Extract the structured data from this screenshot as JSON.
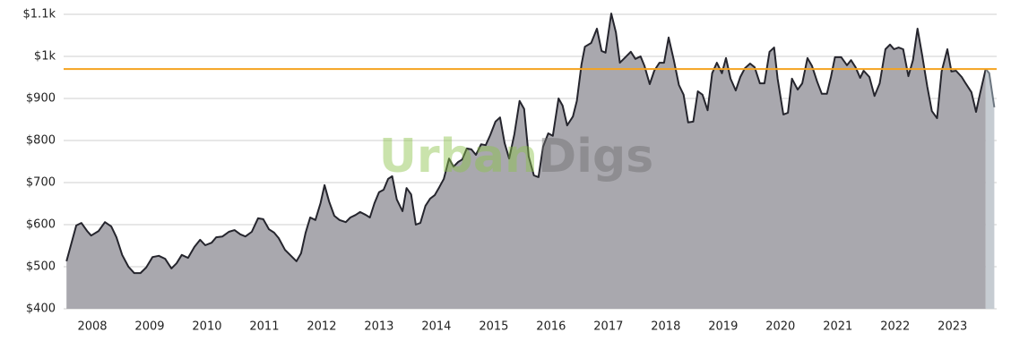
{
  "chart_data": {
    "type": "area",
    "watermark": [
      "Urban",
      "Digs"
    ],
    "xlim": [
      2008,
      2024.27
    ],
    "ylim": [
      400,
      1100
    ],
    "yticks": [
      {
        "value": 400,
        "label": "$400"
      },
      {
        "value": 500,
        "label": "$500"
      },
      {
        "value": 600,
        "label": "$600"
      },
      {
        "value": 700,
        "label": "$700"
      },
      {
        "value": 800,
        "label": "$800"
      },
      {
        "value": 900,
        "label": "$900"
      },
      {
        "value": 1000,
        "label": "$1k"
      },
      {
        "value": 1100,
        "label": "$1.1k"
      }
    ],
    "xticks": [
      {
        "value": 2008.5,
        "label": "2008"
      },
      {
        "value": 2009.5,
        "label": "2009"
      },
      {
        "value": 2010.5,
        "label": "2010"
      },
      {
        "value": 2011.5,
        "label": "2011"
      },
      {
        "value": 2012.5,
        "label": "2012"
      },
      {
        "value": 2013.5,
        "label": "2013"
      },
      {
        "value": 2014.5,
        "label": "2014"
      },
      {
        "value": 2015.5,
        "label": "2015"
      },
      {
        "value": 2016.5,
        "label": "2016"
      },
      {
        "value": 2017.5,
        "label": "2017"
      },
      {
        "value": 2018.5,
        "label": "2018"
      },
      {
        "value": 2019.5,
        "label": "2019"
      },
      {
        "value": 2020.5,
        "label": "2020"
      },
      {
        "value": 2021.5,
        "label": "2021"
      },
      {
        "value": 2022.5,
        "label": "2022"
      },
      {
        "value": 2023.5,
        "label": "2023"
      }
    ],
    "grid": true,
    "reference_line": {
      "value": 970,
      "color": "#f5a31f"
    },
    "series": [
      {
        "color": "#a9a8ae",
        "line_color": "#25252d",
        "x": [
          2008.05,
          2008.22,
          2008.31,
          2008.41,
          2008.48,
          2008.61,
          2008.72,
          2008.83,
          2008.92,
          2009.02,
          2009.13,
          2009.23,
          2009.34,
          2009.44,
          2009.55,
          2009.66,
          2009.77,
          2009.88,
          2009.97,
          2010.06,
          2010.17,
          2010.28,
          2010.38,
          2010.47,
          2010.58,
          2010.66,
          2010.77,
          2010.88,
          2010.98,
          2011.08,
          2011.17,
          2011.28,
          2011.39,
          2011.48,
          2011.58,
          2011.67,
          2011.75,
          2011.86,
          2012.06,
          2012.14,
          2012.22,
          2012.3,
          2012.39,
          2012.48,
          2012.55,
          2012.63,
          2012.72,
          2012.81,
          2012.92,
          2013.0,
          2013.09,
          2013.17,
          2013.27,
          2013.34,
          2013.42,
          2013.5,
          2013.58,
          2013.66,
          2013.73,
          2013.81,
          2013.91,
          2013.98,
          2014.06,
          2014.14,
          2014.22,
          2014.31,
          2014.39,
          2014.47,
          2014.55,
          2014.63,
          2014.72,
          2014.8,
          2014.88,
          2014.95,
          2015.03,
          2015.11,
          2015.19,
          2015.28,
          2015.36,
          2015.44,
          2015.53,
          2015.61,
          2015.69,
          2015.77,
          2015.86,
          2015.95,
          2016.03,
          2016.11,
          2016.2,
          2016.28,
          2016.36,
          2016.45,
          2016.53,
          2016.63,
          2016.7,
          2016.78,
          2016.88,
          2016.95,
          2017.03,
          2017.09,
          2017.2,
          2017.3,
          2017.38,
          2017.45,
          2017.55,
          2017.63,
          2017.7,
          2017.78,
          2017.89,
          2017.97,
          2018.06,
          2018.13,
          2018.22,
          2018.3,
          2018.39,
          2018.47,
          2018.55,
          2018.64,
          2018.73,
          2018.81,
          2018.89,
          2018.98,
          2019.06,
          2019.14,
          2019.23,
          2019.31,
          2019.39,
          2019.48,
          2019.55,
          2019.63,
          2019.72,
          2019.8,
          2019.88,
          2019.97,
          2020.05,
          2020.14,
          2020.22,
          2020.31,
          2020.39,
          2020.45,
          2020.55,
          2020.63,
          2020.7,
          2020.8,
          2020.88,
          2020.97,
          2021.05,
          2021.14,
          2021.22,
          2021.31,
          2021.38,
          2021.45,
          2021.56,
          2021.66,
          2021.73,
          2021.81,
          2021.89,
          2021.95,
          2022.05,
          2022.14,
          2022.23,
          2022.33,
          2022.41,
          2022.48,
          2022.56,
          2022.64,
          2022.73,
          2022.81,
          2022.89,
          2022.97,
          2023.06,
          2023.14,
          2023.23,
          2023.31,
          2023.41,
          2023.48,
          2023.56,
          2023.66,
          2023.73,
          2023.83,
          2023.91,
          2023.98,
          2024.08
        ],
        "values": [
          513,
          598,
          604,
          585,
          574,
          585,
          606,
          596,
          570,
          528,
          500,
          485,
          485,
          498,
          523,
          526,
          519,
          496,
          508,
          528,
          521,
          547,
          564,
          551,
          557,
          570,
          572,
          583,
          587,
          577,
          572,
          583,
          615,
          613,
          589,
          581,
          568,
          540,
          513,
          532,
          581,
          617,
          611,
          651,
          694,
          655,
          621,
          611,
          606,
          617,
          623,
          630,
          623,
          617,
          651,
          677,
          683,
          709,
          715,
          660,
          632,
          687,
          672,
          600,
          604,
          645,
          662,
          670,
          689,
          709,
          757,
          738,
          749,
          755,
          781,
          779,
          766,
          791,
          789,
          813,
          845,
          855,
          794,
          757,
          815,
          894,
          875,
          762,
          717,
          713,
          785,
          817,
          811,
          900,
          883,
          836,
          857,
          894,
          981,
          1023,
          1032,
          1066,
          1013,
          1009,
          1102,
          1057,
          985,
          996,
          1011,
          994,
          1000,
          977,
          934,
          966,
          985,
          985,
          1045,
          991,
          932,
          909,
          843,
          845,
          917,
          909,
          872,
          960,
          985,
          960,
          996,
          947,
          919,
          951,
          972,
          983,
          974,
          936,
          936,
          1011,
          1021,
          947,
          862,
          866,
          947,
          921,
          936,
          996,
          977,
          940,
          911,
          911,
          951,
          998,
          998,
          979,
          991,
          974,
          949,
          966,
          951,
          906,
          936,
          1017,
          1028,
          1017,
          1021,
          1017,
          953,
          991,
          1066,
          1004,
          928,
          870,
          853,
          964,
          1017,
          964,
          966,
          951,
          936,
          915,
          868,
          911,
          970
        ]
      },
      {
        "color": "#c6ccd2",
        "line_color": "#6c7680",
        "x": [
          2024.08,
          2024.14,
          2024.23
        ],
        "values": [
          970,
          960,
          879
        ]
      }
    ]
  }
}
